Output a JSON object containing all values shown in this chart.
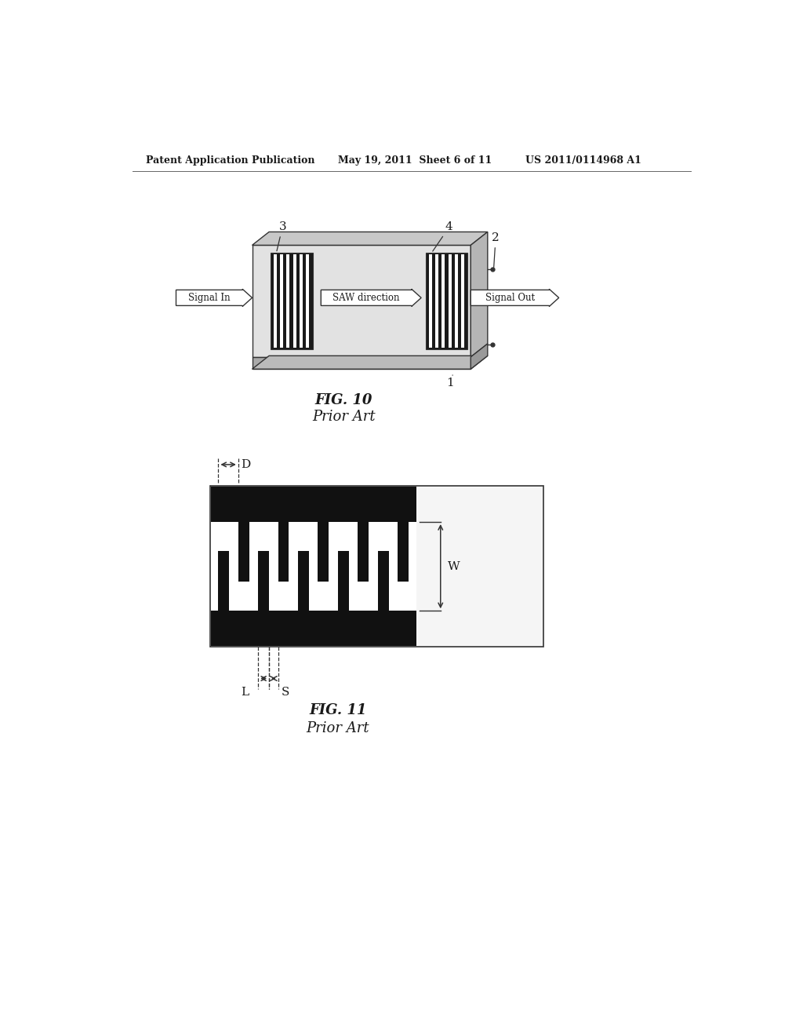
{
  "bg_color": "#ffffff",
  "header_left": "Patent Application Publication",
  "header_mid": "May 19, 2011  Sheet 6 of 11",
  "header_right": "US 2011/0114968 A1",
  "fig10_title": "FIG. 10",
  "fig10_subtitle": "Prior Art",
  "fig11_title": "FIG. 11",
  "fig11_subtitle": "Prior Art",
  "text_color": "#1a1a1a",
  "line_color": "#333333"
}
